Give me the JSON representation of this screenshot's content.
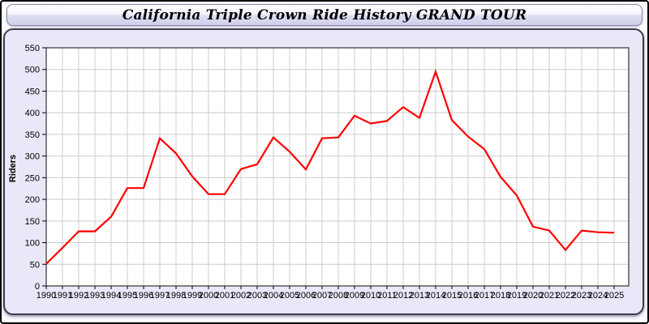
{
  "title": "California Triple Crown Ride History GRAND TOUR",
  "colors": {
    "line": "#ff0000",
    "panel_bg": "#e8e8f8",
    "plot_bg": "#ffffff",
    "grid": "#cccccc",
    "axis": "#333333",
    "text": "#000000"
  },
  "chart_data": {
    "type": "line",
    "title": "California Triple Crown Ride History GRAND TOUR",
    "xlabel": "",
    "ylabel": "Riders",
    "ylim": [
      0,
      550
    ],
    "ytick_step": 50,
    "grid": true,
    "legend_position": "none",
    "x": [
      1990,
      1991,
      1992,
      1993,
      1994,
      1995,
      1996,
      1997,
      1998,
      1999,
      2000,
      2001,
      2002,
      2003,
      2004,
      2005,
      2006,
      2007,
      2008,
      2009,
      2010,
      2011,
      2012,
      2013,
      2014,
      2015,
      2016,
      2017,
      2018,
      2019,
      2020,
      2021,
      2022,
      2023,
      2024,
      2025
    ],
    "series": [
      {
        "name": "Riders",
        "color": "#ff0000",
        "values": [
          51,
          88,
          126,
          126,
          160,
          226,
          226,
          341,
          306,
          253,
          212,
          212,
          270,
          281,
          343,
          310,
          269,
          341,
          343,
          393,
          375,
          381,
          413,
          388,
          495,
          383,
          345,
          316,
          252,
          209,
          137,
          128,
          83,
          128,
          124,
          123
        ]
      }
    ]
  }
}
